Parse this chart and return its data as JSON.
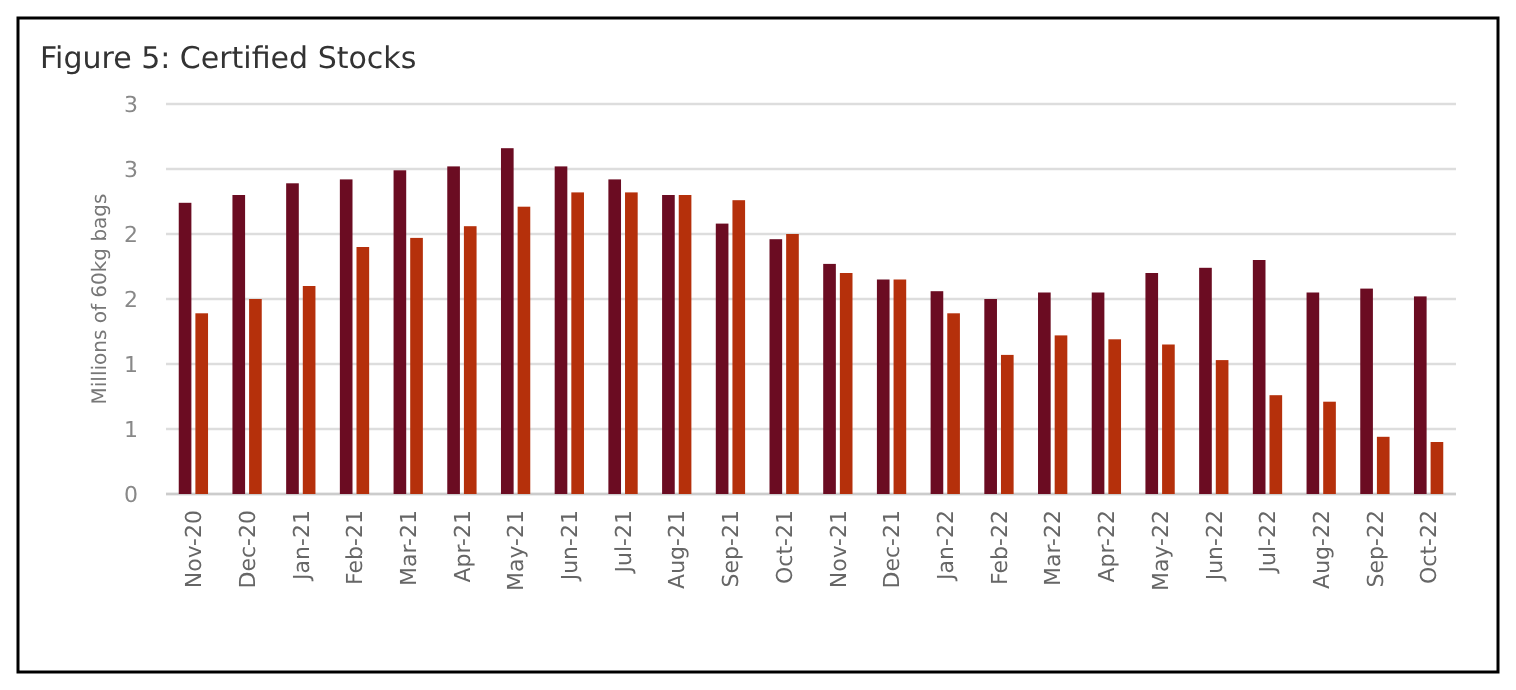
{
  "chart_data": {
    "type": "bar",
    "title": "Figure 5: Certified Stocks",
    "ylabel": "Millions of 60kg bags",
    "categories": [
      "Nov-20",
      "Dec-20",
      "Jan-21",
      "Feb-21",
      "Mar-21",
      "Apr-21",
      "May-21",
      "Jun-21",
      "Jul-21",
      "Aug-21",
      "Sep-21",
      "Oct-21",
      "Nov-21",
      "Dec-21",
      "Jan-22",
      "Feb-22",
      "Mar-22",
      "Apr-22",
      "May-22",
      "Jun-22",
      "Jul-22",
      "Aug-22",
      "Sep-22",
      "Oct-22"
    ],
    "series": [
      {
        "color": "#6b0c22",
        "values": [
          2.24,
          2.3,
          2.39,
          2.42,
          2.49,
          2.52,
          2.66,
          2.52,
          2.42,
          2.3,
          2.08,
          1.96,
          1.77,
          1.65,
          1.56,
          1.5,
          1.55,
          1.55,
          1.7,
          1.74,
          1.8,
          1.55,
          1.58,
          1.52
        ]
      },
      {
        "color": "#b5300b",
        "values": [
          1.39,
          1.5,
          1.6,
          1.9,
          1.97,
          2.06,
          2.21,
          2.32,
          2.32,
          2.3,
          2.26,
          2.0,
          1.7,
          1.65,
          1.39,
          1.07,
          1.22,
          1.19,
          1.15,
          1.03,
          0.76,
          0.71,
          0.44,
          0.4
        ]
      }
    ],
    "ylim": [
      0,
      3
    ],
    "yticks": [
      0,
      {
        "value": 0.5,
        "label": "1"
      },
      1,
      {
        "value": 1.5,
        "label": "2"
      },
      2,
      {
        "value": 2.5,
        "label": "3"
      },
      3
    ],
    "grid": "y"
  }
}
